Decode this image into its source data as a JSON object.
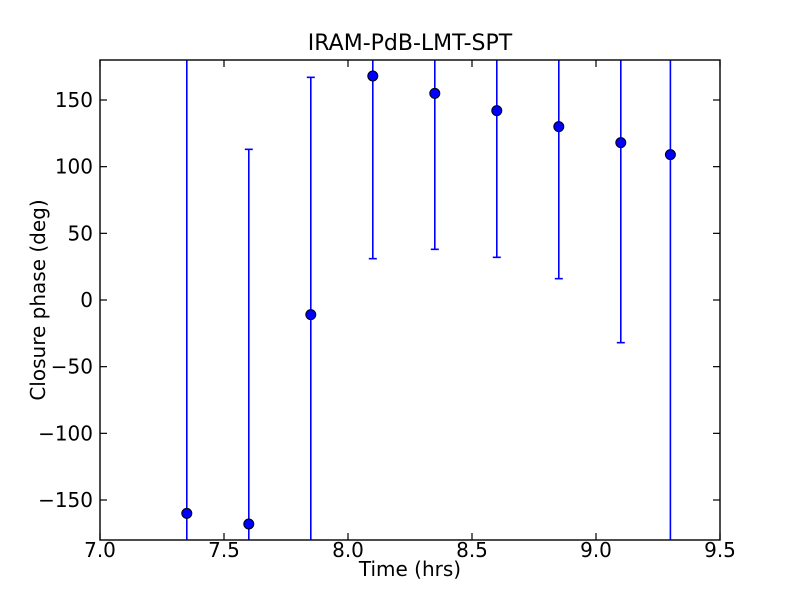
{
  "figure": {
    "background_color": "#ffffff",
    "spine_color": "#000000",
    "text_color": "#000000"
  },
  "chart_data": {
    "type": "scatter",
    "title": "IRAM-PdB-LMT-SPT",
    "xlabel": "Time (hrs)",
    "ylabel": "Closure phase (deg)",
    "xlim": [
      7.0,
      9.5
    ],
    "ylim": [
      -180,
      180
    ],
    "x_ticks": [
      7.0,
      7.5,
      8.0,
      8.5,
      9.0,
      9.5
    ],
    "x_tick_labels": [
      "7.0",
      "7.5",
      "8.0",
      "8.5",
      "9.0",
      "9.5"
    ],
    "y_ticks": [
      -150,
      -100,
      -50,
      0,
      50,
      100,
      150
    ],
    "y_tick_labels": [
      "−150",
      "−100",
      "−50",
      "0",
      "50",
      "100",
      "150"
    ],
    "grid": false,
    "legend": null,
    "errorbars_clipped_to_axes": true,
    "series": [
      {
        "name": "closure-phase",
        "marker": "circle",
        "color": "#0000ff",
        "marker_face_color": "#0000ff",
        "marker_edge_color": "#000000",
        "x": [
          7.35,
          7.6,
          7.85,
          8.1,
          8.35,
          8.6,
          8.85,
          9.1,
          9.3
        ],
        "y": [
          -160,
          -168,
          -11,
          168,
          155,
          142,
          130,
          118,
          109
        ],
        "yerr": [
          350,
          281,
          178,
          137,
          117,
          110,
          114,
          150,
          300
        ]
      }
    ]
  }
}
